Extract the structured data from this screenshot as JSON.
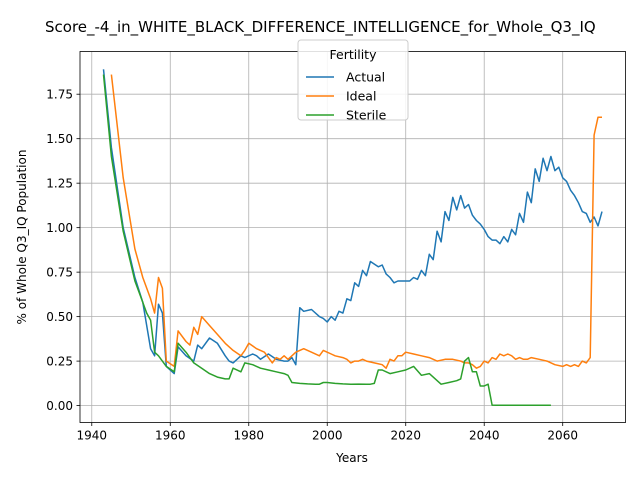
{
  "chart_data": {
    "type": "line",
    "title": "Score_-4_in_WHITE_BLACK_DIFFERENCE_INTELLIGENCE_for_Whole_Q3_IQ",
    "xlabel": "Years",
    "ylabel": "% of Whole Q3_IQ Population",
    "xlim": [
      1937,
      2076
    ],
    "ylim": [
      -0.095,
      1.99
    ],
    "x_ticks": [
      1940,
      1960,
      1980,
      2000,
      2020,
      2040,
      2060
    ],
    "y_ticks": [
      0.0,
      0.25,
      0.5,
      0.75,
      1.0,
      1.25,
      1.5,
      1.75
    ],
    "grid": true,
    "legend": {
      "title": "Fertility",
      "placement": "top-center"
    },
    "series": [
      {
        "name": "Actual",
        "color": "#1f77b4",
        "x": [
          1943,
          1945,
          1948,
          1951,
          1953,
          1955,
          1956,
          1957,
          1958,
          1959,
          1961,
          1962,
          1964,
          1966,
          1967,
          1968,
          1970,
          1972,
          1974,
          1975,
          1976,
          1978,
          1979,
          1981,
          1982,
          1983,
          1985,
          1987,
          1989,
          1990,
          1991,
          1992,
          1993,
          1994,
          1996,
          1998,
          1999,
          2000,
          2001,
          2002,
          2003,
          2004,
          2005,
          2006,
          2007,
          2008,
          2009,
          2010,
          2011,
          2013,
          2014,
          2015,
          2016,
          2017,
          2018,
          2019,
          2021,
          2022,
          2023,
          2024,
          2025,
          2026,
          2027,
          2028,
          2029,
          2030,
          2031,
          2032,
          2033,
          2034,
          2035,
          2036,
          2037,
          2038,
          2039,
          2040,
          2041,
          2042,
          2043,
          2044,
          2045,
          2046,
          2047,
          2048,
          2049,
          2050,
          2051,
          2052,
          2053,
          2054,
          2055,
          2056,
          2057,
          2058,
          2059,
          2060,
          2061,
          2062,
          2063,
          2064,
          2065,
          2066,
          2067,
          2068,
          2069,
          2070
        ],
        "y": [
          1.89,
          1.45,
          1.0,
          0.72,
          0.58,
          0.32,
          0.28,
          0.57,
          0.52,
          0.22,
          0.18,
          0.33,
          0.28,
          0.25,
          0.34,
          0.32,
          0.38,
          0.35,
          0.28,
          0.25,
          0.24,
          0.28,
          0.27,
          0.29,
          0.28,
          0.26,
          0.29,
          0.26,
          0.25,
          0.25,
          0.27,
          0.23,
          0.55,
          0.53,
          0.54,
          0.5,
          0.49,
          0.47,
          0.5,
          0.48,
          0.53,
          0.52,
          0.6,
          0.59,
          0.69,
          0.67,
          0.76,
          0.73,
          0.81,
          0.78,
          0.79,
          0.74,
          0.72,
          0.69,
          0.7,
          0.7,
          0.7,
          0.72,
          0.71,
          0.76,
          0.73,
          0.85,
          0.82,
          0.98,
          0.92,
          1.09,
          1.04,
          1.17,
          1.1,
          1.18,
          1.11,
          1.13,
          1.07,
          1.04,
          1.02,
          0.99,
          0.95,
          0.93,
          0.93,
          0.91,
          0.95,
          0.92,
          0.99,
          0.96,
          1.08,
          1.03,
          1.2,
          1.14,
          1.33,
          1.26,
          1.39,
          1.32,
          1.4,
          1.32,
          1.34,
          1.28,
          1.26,
          1.21,
          1.18,
          1.14,
          1.09,
          1.08,
          1.03,
          1.06,
          1.01,
          1.09
        ]
      },
      {
        "name": "Ideal",
        "color": "#ff7f0e",
        "x": [
          1945,
          1948,
          1951,
          1953,
          1955,
          1956,
          1957,
          1958,
          1959,
          1961,
          1962,
          1964,
          1965,
          1966,
          1967,
          1968,
          1970,
          1972,
          1974,
          1976,
          1978,
          1979,
          1980,
          1982,
          1984,
          1985,
          1986,
          1987,
          1988,
          1989,
          1990,
          1991,
          1992,
          1994,
          1996,
          1998,
          1999,
          2000,
          2001,
          2002,
          2004,
          2005,
          2006,
          2007,
          2008,
          2009,
          2010,
          2012,
          2014,
          2015,
          2016,
          2017,
          2018,
          2019,
          2020,
          2022,
          2024,
          2026,
          2028,
          2030,
          2032,
          2034,
          2035,
          2036,
          2037,
          2038,
          2039,
          2040,
          2041,
          2042,
          2043,
          2044,
          2045,
          2046,
          2047,
          2048,
          2049,
          2050,
          2051,
          2052,
          2054,
          2056,
          2058,
          2060,
          2061,
          2062,
          2063,
          2064,
          2065,
          2066,
          2067,
          2068,
          2069,
          2070
        ],
        "y": [
          1.86,
          1.28,
          0.88,
          0.72,
          0.6,
          0.52,
          0.72,
          0.66,
          0.25,
          0.22,
          0.42,
          0.36,
          0.34,
          0.44,
          0.4,
          0.5,
          0.45,
          0.4,
          0.35,
          0.31,
          0.28,
          0.31,
          0.35,
          0.32,
          0.3,
          0.27,
          0.24,
          0.27,
          0.26,
          0.28,
          0.26,
          0.28,
          0.3,
          0.32,
          0.3,
          0.28,
          0.31,
          0.3,
          0.29,
          0.28,
          0.27,
          0.26,
          0.24,
          0.25,
          0.25,
          0.26,
          0.25,
          0.24,
          0.23,
          0.21,
          0.26,
          0.25,
          0.28,
          0.28,
          0.3,
          0.29,
          0.28,
          0.27,
          0.25,
          0.26,
          0.26,
          0.25,
          0.24,
          0.24,
          0.23,
          0.21,
          0.22,
          0.25,
          0.24,
          0.27,
          0.26,
          0.29,
          0.28,
          0.29,
          0.28,
          0.26,
          0.27,
          0.26,
          0.26,
          0.27,
          0.26,
          0.25,
          0.23,
          0.22,
          0.23,
          0.22,
          0.23,
          0.22,
          0.25,
          0.24,
          0.27,
          1.52,
          1.62,
          1.62
        ]
      },
      {
        "name": "Sterile",
        "color": "#2ca02c",
        "x": [
          1943,
          1945,
          1948,
          1951,
          1953,
          1954,
          1955,
          1956,
          1957,
          1959,
          1961,
          1962,
          1964,
          1966,
          1968,
          1970,
          1972,
          1974,
          1975,
          1976,
          1978,
          1979,
          1981,
          1983,
          1985,
          1987,
          1989,
          1990,
          1991,
          1993,
          1995,
          1997,
          1998,
          1999,
          2000,
          2002,
          2004,
          2006,
          2008,
          2010,
          2011,
          2012,
          2013,
          2014,
          2016,
          2018,
          2020,
          2022,
          2024,
          2026,
          2027,
          2029,
          2031,
          2033,
          2034,
          2035,
          2036,
          2037,
          2038,
          2039,
          2040,
          2041,
          2042,
          2043,
          2044,
          2046,
          2048,
          2050,
          2052,
          2054,
          2056,
          2057
        ],
        "y": [
          1.86,
          1.4,
          0.98,
          0.7,
          0.58,
          0.52,
          0.48,
          0.3,
          0.28,
          0.22,
          0.19,
          0.35,
          0.3,
          0.24,
          0.21,
          0.18,
          0.16,
          0.15,
          0.15,
          0.21,
          0.19,
          0.24,
          0.23,
          0.21,
          0.2,
          0.19,
          0.18,
          0.17,
          0.13,
          0.125,
          0.122,
          0.12,
          0.12,
          0.13,
          0.13,
          0.125,
          0.122,
          0.12,
          0.121,
          0.12,
          0.12,
          0.125,
          0.2,
          0.2,
          0.18,
          0.19,
          0.2,
          0.22,
          0.17,
          0.18,
          0.16,
          0.12,
          0.13,
          0.14,
          0.15,
          0.25,
          0.27,
          0.19,
          0.19,
          0.11,
          0.11,
          0.12,
          0.003,
          0.002,
          0.002,
          0.002,
          0.002,
          0.002,
          0.002,
          0.002,
          0.002,
          0.002
        ]
      }
    ]
  }
}
